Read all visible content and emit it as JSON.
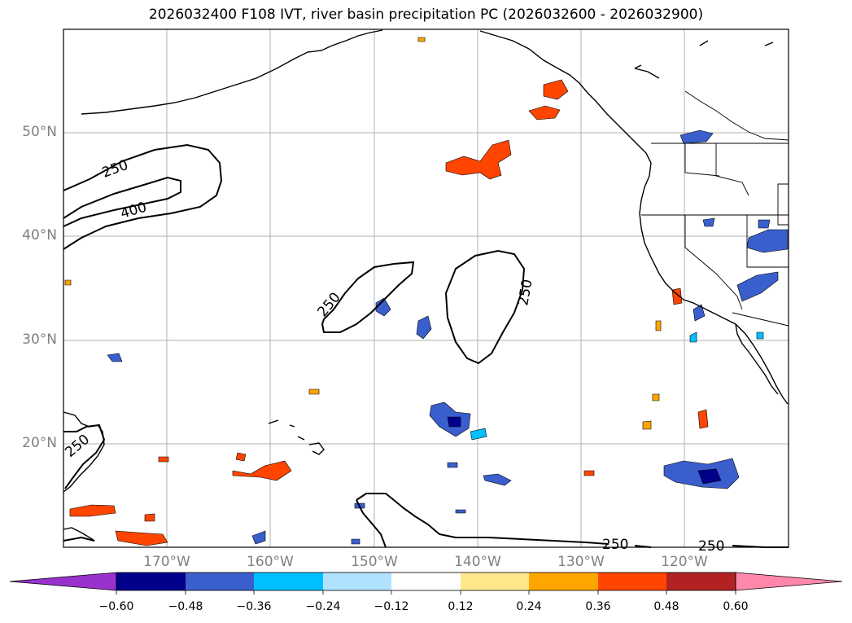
{
  "title": "2026032400 F108 IVT, river basin precipitation PC (2026032600 - 2026032900)",
  "lat_labels": [
    "50°N",
    "40°N",
    "30°N",
    "20°N"
  ],
  "lon_labels": [
    "170°W",
    "160°W",
    "150°W",
    "140°W",
    "130°W",
    "120°W"
  ],
  "contour_labels": [
    "250",
    "400",
    "250",
    "250",
    "250",
    "250",
    "250"
  ],
  "colorbar": {
    "ticks": [
      "−0.60",
      "−0.48",
      "−0.36",
      "−0.24",
      "−0.12",
      "0.12",
      "0.24",
      "0.36",
      "0.48",
      "0.60"
    ],
    "colors": [
      "#9932cc",
      "#00008b",
      "#3a5fcd",
      "#00bfff",
      "#b0e2ff",
      "#ffffff",
      "#ffe88c",
      "#ffa500",
      "#ff4500",
      "#b22222",
      "#ff88aa"
    ]
  },
  "palette": {
    "neg_dark": "#00008b",
    "neg_mid": "#3a5fcd",
    "neg_light": "#00bfff",
    "pos_light": "#ffe88c",
    "pos_mid": "#ffa500",
    "pos_strong": "#ff4500"
  }
}
